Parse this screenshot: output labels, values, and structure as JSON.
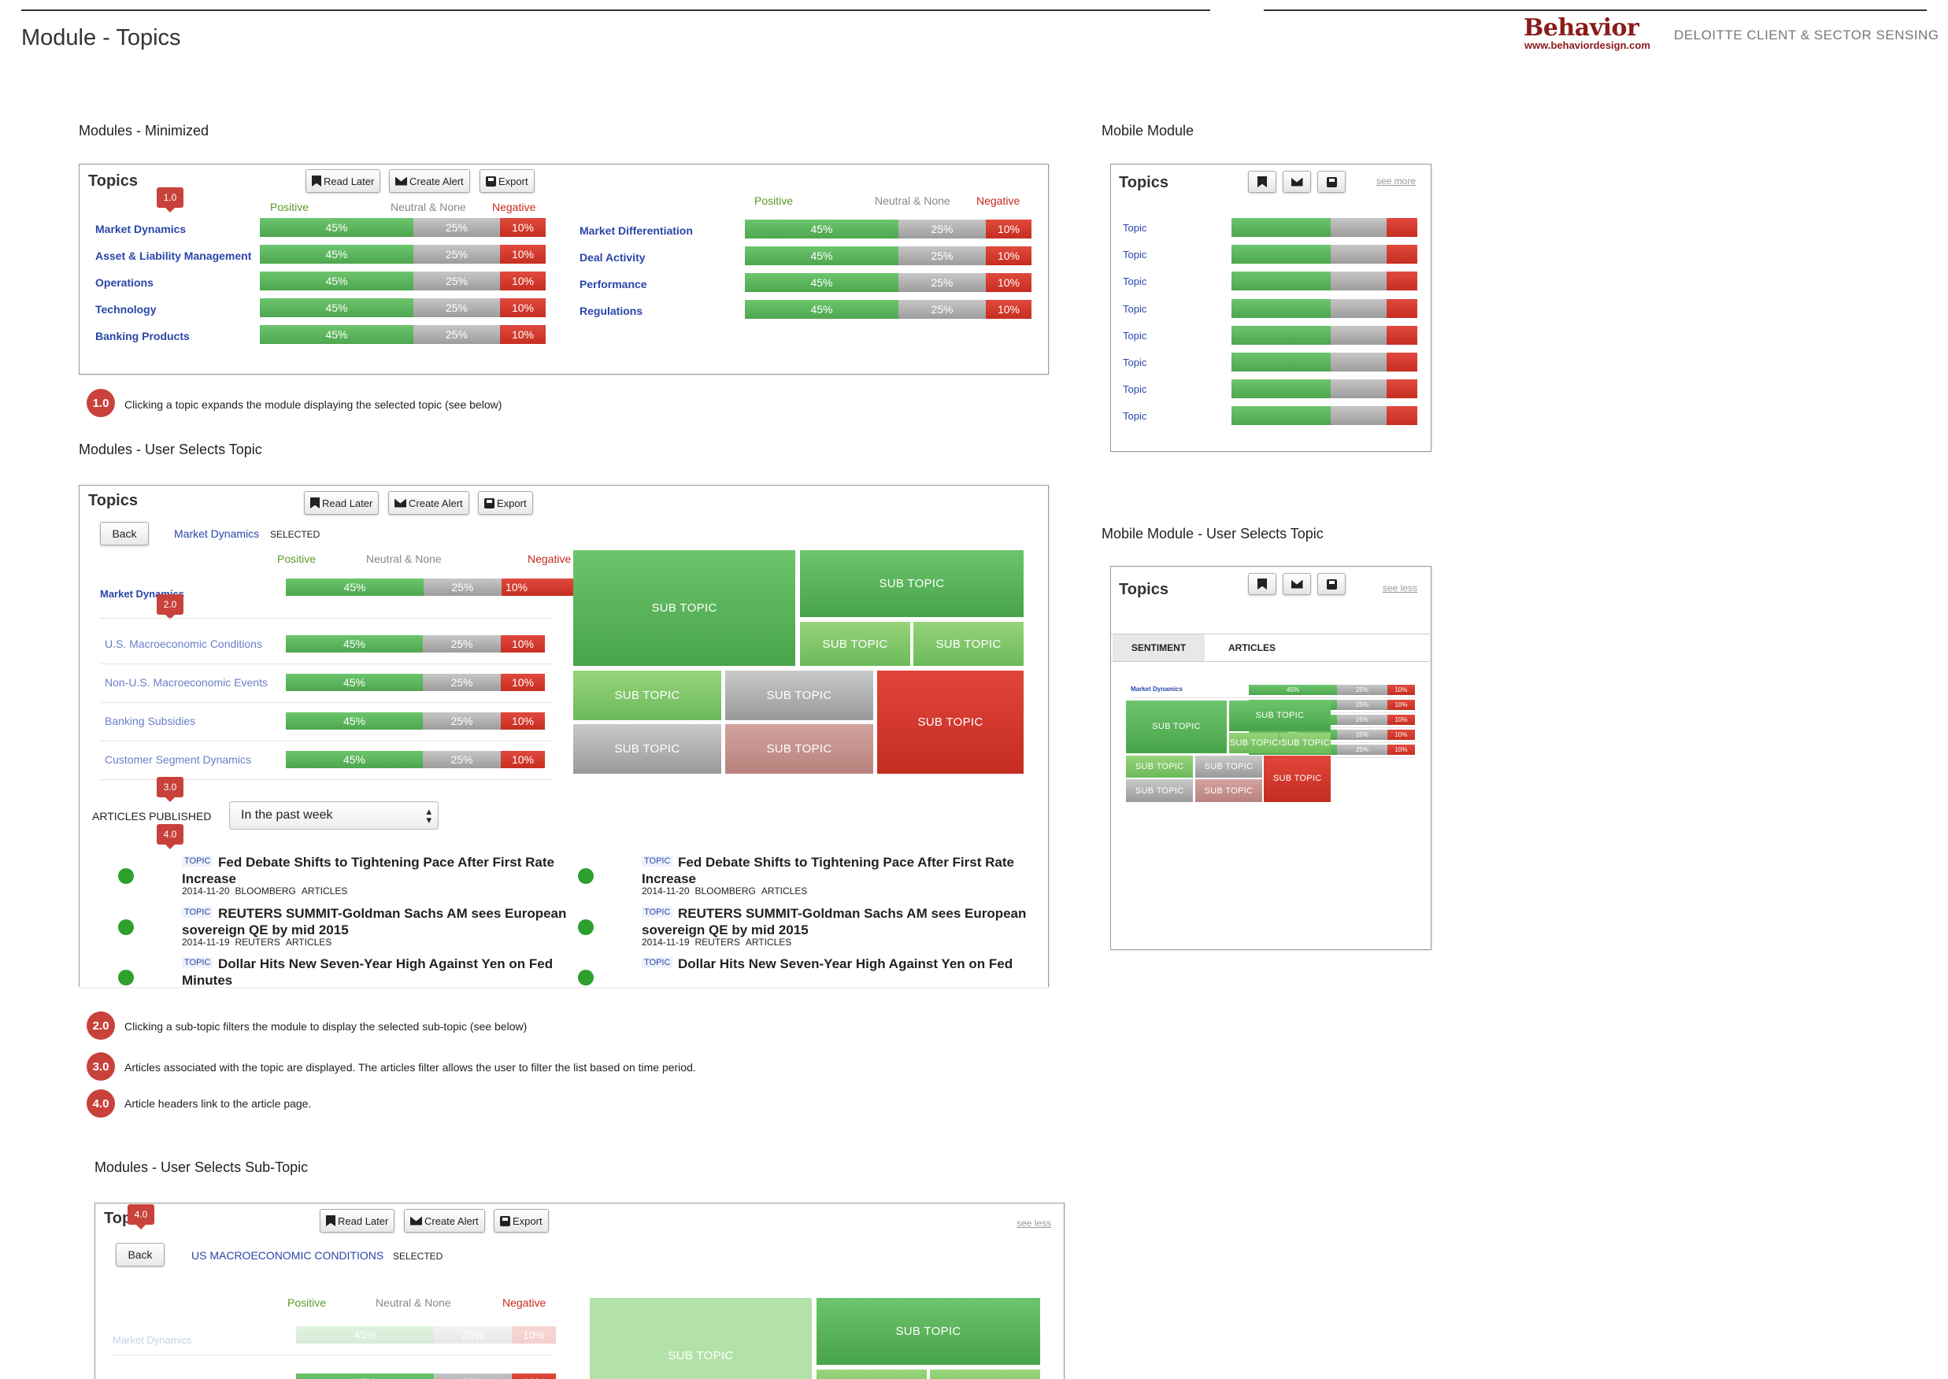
{
  "header": {
    "title": "Module - Topics",
    "logo": "Behavior",
    "logo_url": "www.behaviordesign.com",
    "client": "DELOITTE CLIENT & SECTOR SENSING"
  },
  "sections": {
    "minimized": "Modules - Minimized",
    "user_selects_topic": "Modules - User Selects Topic",
    "user_selects_subtopic": "Modules - User Selects Sub-Topic",
    "mobile": "Mobile Module",
    "mobile_selects": "Mobile Module - User Selects Topic"
  },
  "toolbar": {
    "title": "Topics",
    "read_later": "Read Later",
    "create_alert": "Create Alert",
    "export": "Export",
    "see_more": "see more",
    "see_less": "see less",
    "back": "Back"
  },
  "legend": {
    "positive": "Positive",
    "neutral": "Neutral & None",
    "negative": "Negative"
  },
  "bar": {
    "positive": "45%",
    "neutral": "25%",
    "negative": "10%"
  },
  "colors": {
    "positive": "#4ea64e",
    "neutral": "#a6a6a6",
    "negative": "#c72e22",
    "link": "#2a46a8",
    "badge": "#c8423b"
  },
  "minimized_left": [
    "Market Dynamics",
    "Asset & Liability Management",
    "Operations",
    "Technology",
    "Banking Products"
  ],
  "minimized_right": [
    "Market Differentiation",
    "Deal Activity",
    "Performance",
    "Regulations"
  ],
  "badges": {
    "b10": "1.0",
    "b20": "2.0",
    "b30": "3.0",
    "b40": "4.0"
  },
  "notes": {
    "n10": "Clicking a topic expands the module displaying the selected topic (see below)",
    "n20": "Clicking a sub-topic filters the module to display the selected sub-topic (see below)",
    "n30": "Articles associated with the topic are displayed. The articles filter allows the user to filter the list based on time period.",
    "n40": "Article headers link to the article page."
  },
  "selected": {
    "topic": "Market Dynamics",
    "selected_label": "SELECTED",
    "parent": "Market Dynamics",
    "subtopics": [
      "U.S. Macroeconomic Conditions",
      "Non-U.S. Macroeconomic Events",
      "Banking Subsidies",
      "Customer Segment Dynamics"
    ]
  },
  "treemap": {
    "label": "SUB TOPIC"
  },
  "articles": {
    "label": "ARTICLES PUBLISHED",
    "filter": "In the past week",
    "tag": "TOPIC",
    "items": [
      {
        "title": "Fed Debate Shifts to Tightening Pace After First Rate Increase",
        "date": "2014-11-20",
        "source": "BLOOMBERG",
        "type": "ARTICLES"
      },
      {
        "title": "REUTERS SUMMIT-Goldman Sachs AM sees European sovereign QE by mid 2015",
        "date": "2014-11-19",
        "source": "REUTERS",
        "type": "ARTICLES"
      },
      {
        "title": "Dollar Hits New Seven-Year High Against Yen on Fed Minutes",
        "date": "",
        "source": "",
        "type": ""
      }
    ],
    "right_cut_title": "Dollar Hits New Seven-Year High Against Yen on Fed"
  },
  "subtopic_selected": {
    "title": "Topics",
    "topic": "US MACROECONOMIC CONDITIONS",
    "selected_label": "SELECTED",
    "faded_row": "Market Dynamics"
  },
  "mobile": {
    "topic": "Topic",
    "tabs": [
      "SENTIMENT",
      "ARTICLES"
    ]
  }
}
